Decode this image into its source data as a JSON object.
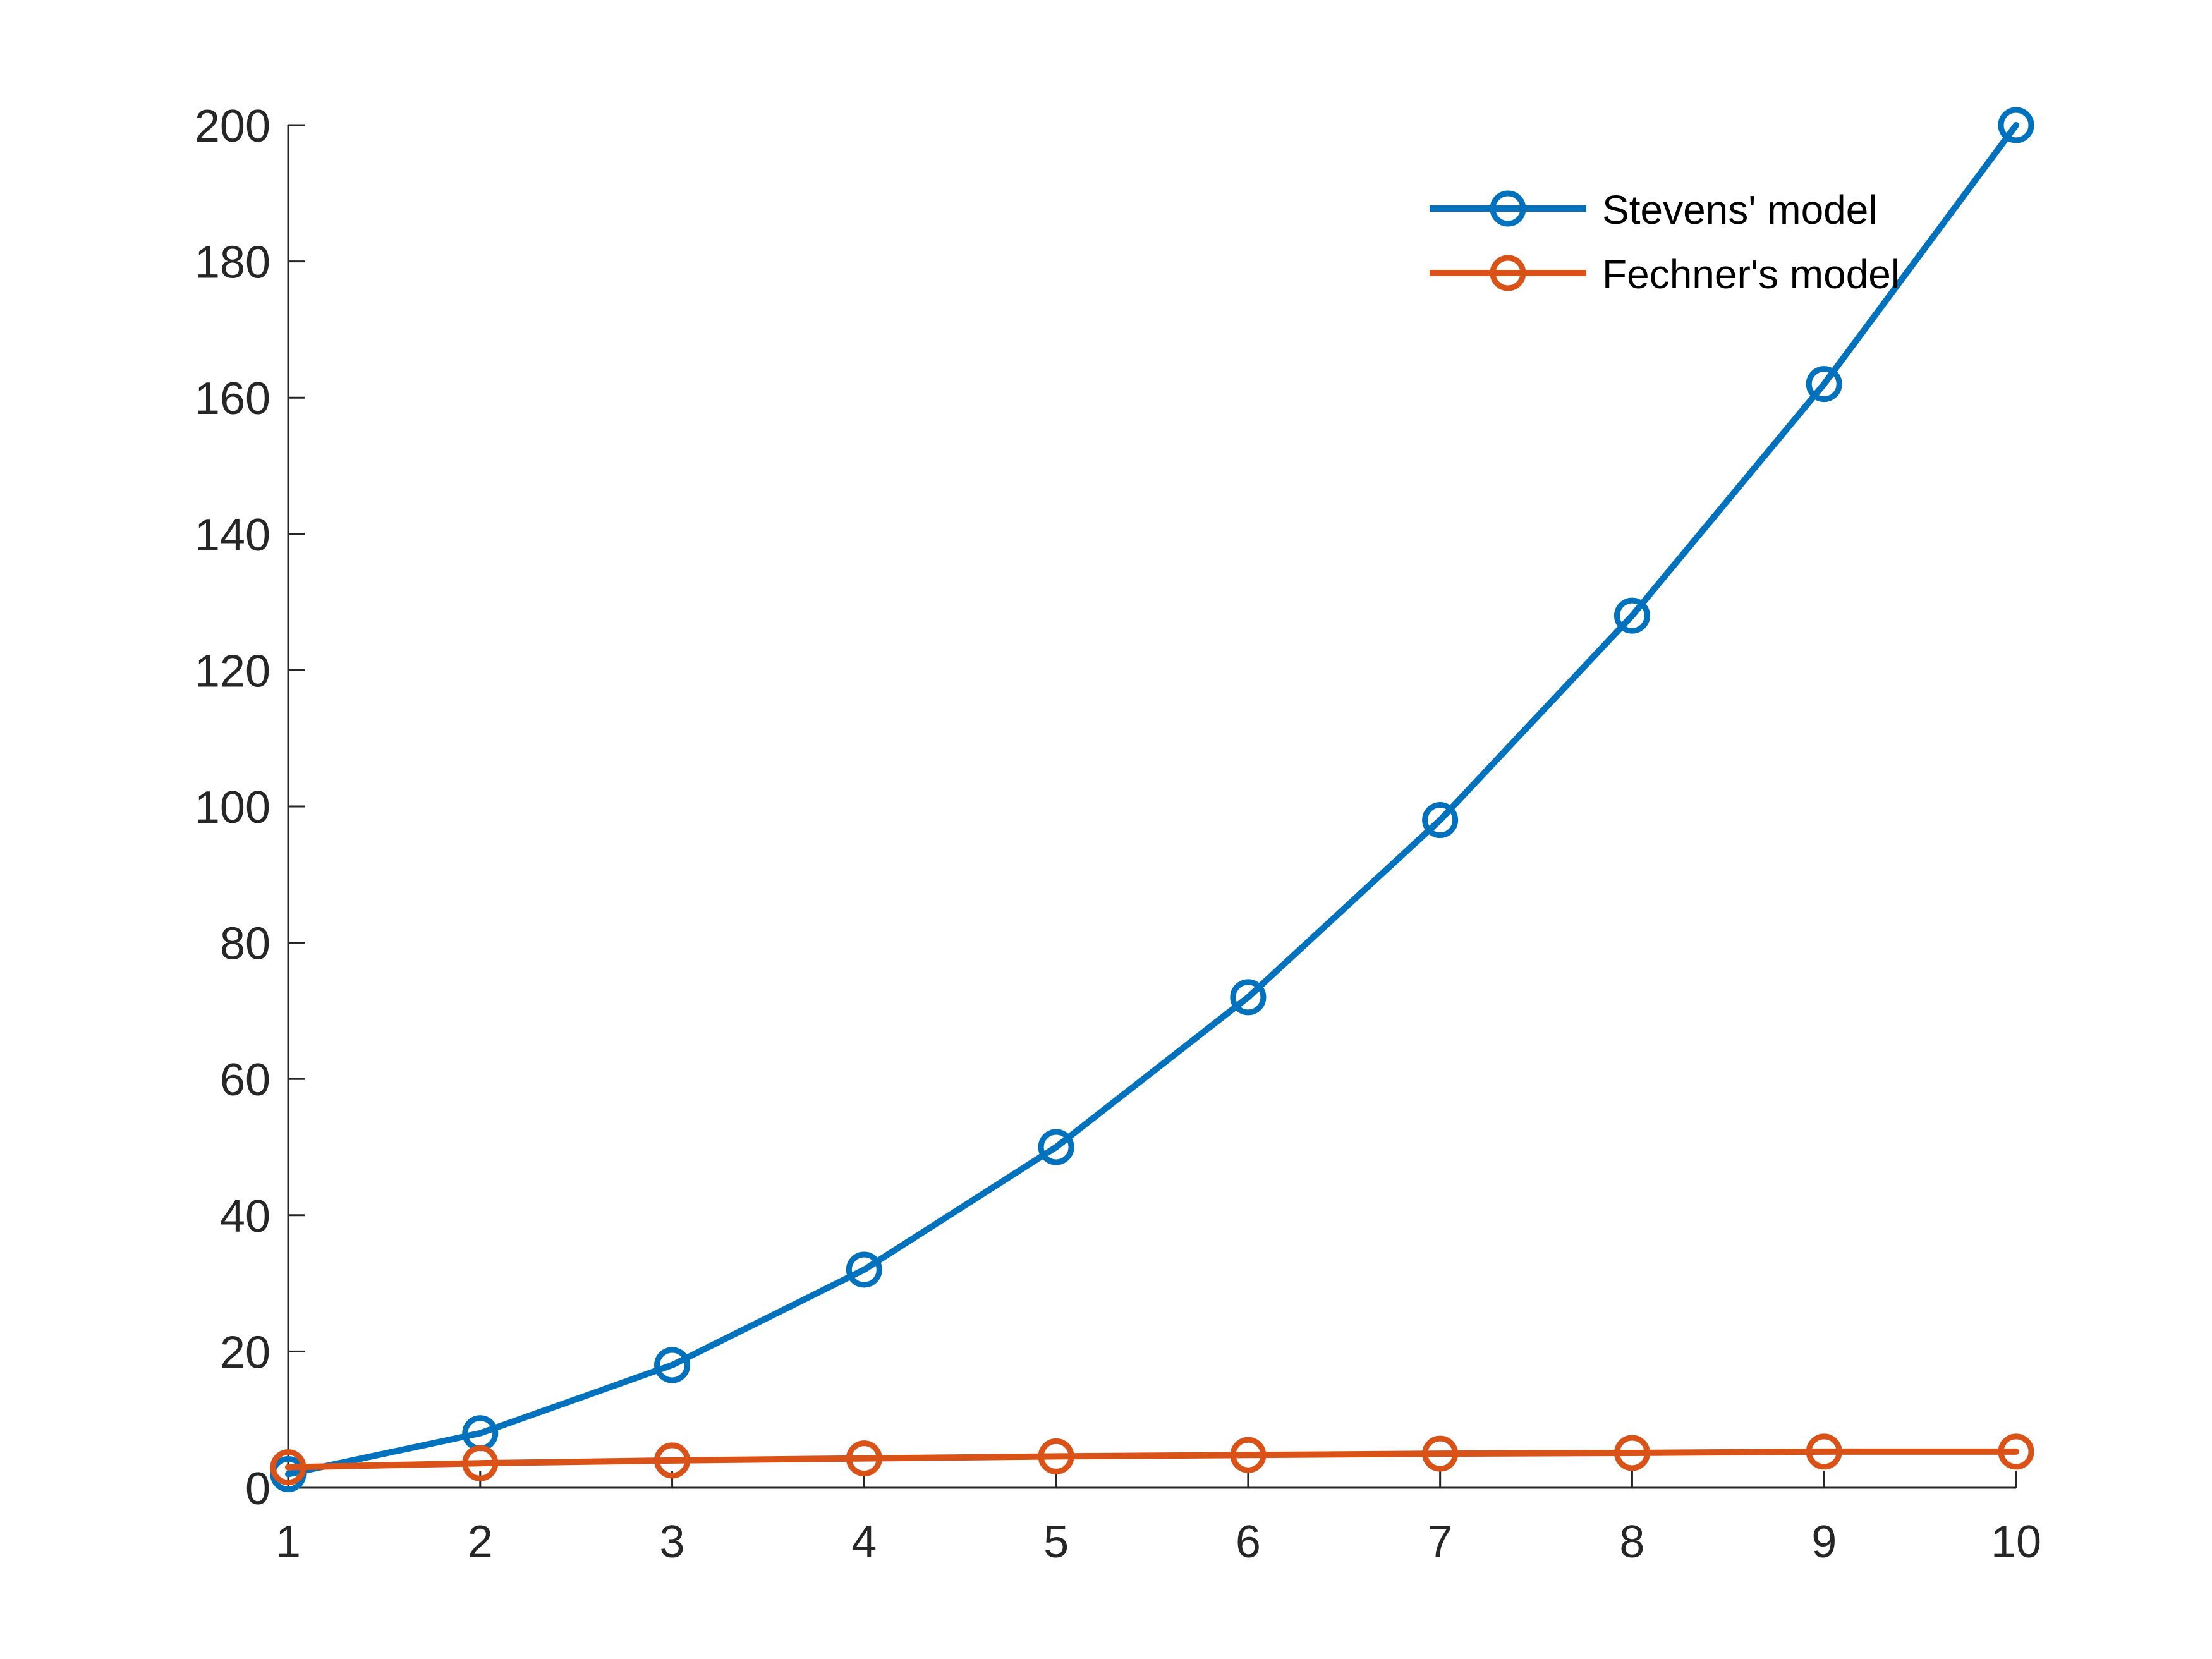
{
  "chart_data": {
    "type": "line",
    "title": "",
    "xlabel": "",
    "ylabel": "",
    "x": [
      1,
      2,
      3,
      4,
      5,
      6,
      7,
      8,
      9,
      10
    ],
    "xlim": [
      1,
      10
    ],
    "ylim": [
      0,
      200
    ],
    "xticks": [
      1,
      2,
      3,
      4,
      5,
      6,
      7,
      8,
      9,
      10
    ],
    "yticks": [
      0,
      20,
      40,
      60,
      80,
      100,
      120,
      140,
      160,
      180,
      200
    ],
    "grid": false,
    "legend_position": "top-right",
    "series": [
      {
        "name": "Stevens' model",
        "color": "#0072BD",
        "marker": "circle",
        "values": [
          2,
          8,
          18,
          32,
          50,
          72,
          98,
          128,
          162,
          200
        ]
      },
      {
        "name": "Fechner's model",
        "color": "#D95319",
        "marker": "circle",
        "values": [
          3.0,
          3.6,
          4.0,
          4.3,
          4.6,
          4.8,
          5.0,
          5.1,
          5.3,
          5.3
        ]
      }
    ]
  }
}
